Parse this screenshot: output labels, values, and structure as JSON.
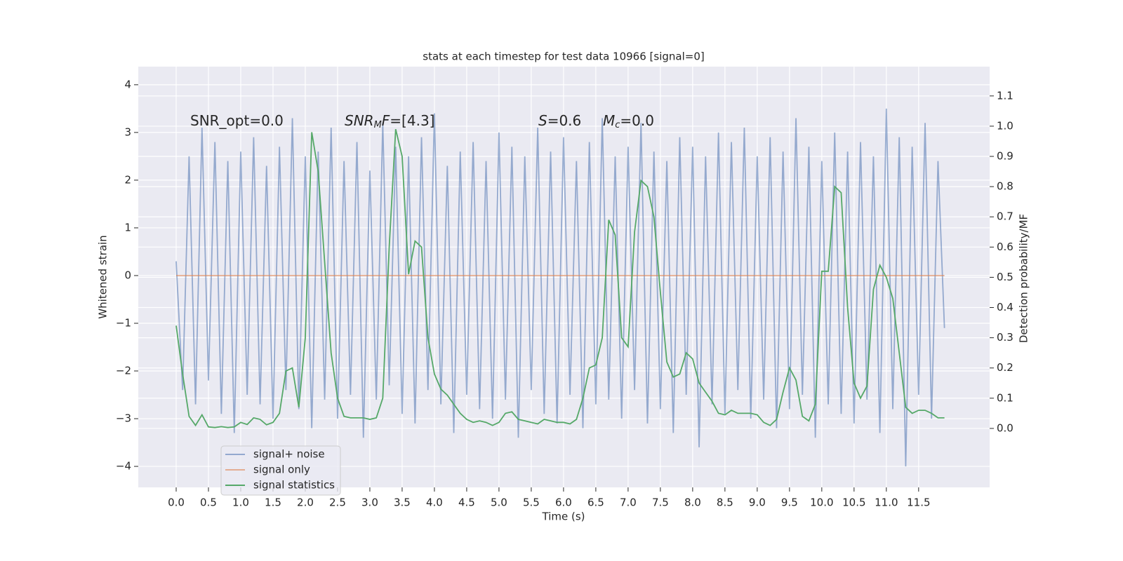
{
  "chart_data": {
    "type": "line",
    "title": "stats at each timestep for test data 10966 [signal=0]",
    "x_label": "Time (s)",
    "y_label": "Whitened strain",
    "y2_label": "Detection probability/MF",
    "annotations": [
      [
        {
          "text": "SNR_opt=0.0",
          "style": "normal"
        }
      ],
      [
        {
          "text": "SNR",
          "style": "italic"
        },
        {
          "text": "M",
          "style": "sub"
        },
        {
          "text": "F",
          "style": "italic"
        },
        {
          "text": "=[4.3]",
          "style": "normal"
        }
      ],
      [
        {
          "text": "S",
          "style": "italic"
        },
        {
          "text": "=0.6",
          "style": "normal"
        }
      ],
      [
        {
          "text": "M",
          "style": "italic"
        },
        {
          "text": "c",
          "style": "sub"
        },
        {
          "text": "=0.0",
          "style": "normal"
        }
      ]
    ],
    "x": [
      0.0,
      0.1,
      0.2,
      0.3,
      0.4,
      0.5,
      0.6,
      0.7,
      0.8,
      0.9,
      1.0,
      1.1,
      1.2,
      1.3,
      1.4,
      1.5,
      1.6,
      1.7,
      1.8,
      1.9,
      2.0,
      2.1,
      2.2,
      2.3,
      2.4,
      2.5,
      2.6,
      2.7,
      2.8,
      2.9,
      3.0,
      3.1,
      3.2,
      3.3,
      3.4,
      3.5,
      3.6,
      3.7,
      3.8,
      3.9,
      4.0,
      4.1,
      4.2,
      4.3,
      4.4,
      4.5,
      4.6,
      4.7,
      4.8,
      4.9,
      5.0,
      5.1,
      5.2,
      5.3,
      5.4,
      5.5,
      5.6,
      5.7,
      5.8,
      5.9,
      6.0,
      6.1,
      6.2,
      6.3,
      6.4,
      6.5,
      6.6,
      6.7,
      6.8,
      6.9,
      7.0,
      7.1,
      7.2,
      7.3,
      7.4,
      7.5,
      7.6,
      7.7,
      7.8,
      7.9,
      8.0,
      8.1,
      8.2,
      8.3,
      8.4,
      8.5,
      8.6,
      8.7,
      8.8,
      8.9,
      9.0,
      9.1,
      9.2,
      9.3,
      9.4,
      9.5,
      9.6,
      9.7,
      9.8,
      9.9,
      10.0,
      10.1,
      10.2,
      10.3,
      10.4,
      10.5,
      10.6,
      10.7,
      10.8,
      10.9,
      11.0,
      11.1,
      11.2,
      11.3,
      11.4,
      11.5,
      11.6,
      11.7,
      11.8,
      11.9
    ],
    "series": [
      {
        "name": "signal+ noise",
        "color": "#4c72b0",
        "alpha": 0.55,
        "axis": "y",
        "values": [
          0.3,
          -2.4,
          2.5,
          -2.7,
          3.1,
          -2.2,
          2.8,
          -2.9,
          2.4,
          -3.3,
          2.6,
          -2.5,
          2.9,
          -2.7,
          2.3,
          -3.0,
          2.7,
          -2.4,
          3.3,
          -2.8,
          2.5,
          -3.2,
          2.6,
          -2.6,
          3.1,
          -3.0,
          2.4,
          -2.5,
          2.8,
          -3.4,
          2.2,
          -2.6,
          3.2,
          -2.3,
          2.7,
          -2.9,
          2.5,
          -3.1,
          2.9,
          -2.4,
          3.4,
          -2.7,
          2.3,
          -3.3,
          2.6,
          -2.5,
          2.8,
          -2.8,
          2.4,
          -3.0,
          3.0,
          -2.6,
          2.7,
          -3.4,
          2.5,
          -2.4,
          3.1,
          -2.9,
          2.6,
          -3.1,
          2.9,
          -2.5,
          2.4,
          -3.2,
          2.8,
          -2.7,
          3.3,
          -2.6,
          2.5,
          -3.0,
          2.7,
          -2.4,
          3.2,
          -3.1,
          2.6,
          -2.8,
          2.4,
          -3.3,
          2.9,
          -2.5,
          2.7,
          -3.6,
          2.5,
          -2.7,
          3.0,
          -2.9,
          2.8,
          -2.4,
          3.1,
          -3.0,
          2.5,
          -2.6,
          2.9,
          -3.2,
          2.6,
          -2.8,
          3.3,
          -2.5,
          2.7,
          -3.4,
          2.4,
          -2.7,
          3.0,
          -2.9,
          2.6,
          -3.1,
          2.8,
          -2.6,
          2.5,
          -3.3,
          3.5,
          -2.8,
          2.9,
          -4.0,
          2.7,
          -2.5,
          3.2,
          -3.0,
          2.4,
          -1.1
        ]
      },
      {
        "name": "signal only",
        "color": "#dd8452",
        "alpha": 0.6,
        "axis": "y",
        "values": [
          0,
          0,
          0,
          0,
          0,
          0,
          0,
          0,
          0,
          0,
          0,
          0,
          0,
          0,
          0,
          0,
          0,
          0,
          0,
          0,
          0,
          0,
          0,
          0,
          0,
          0,
          0,
          0,
          0,
          0,
          0,
          0,
          0,
          0,
          0,
          0,
          0,
          0,
          0,
          0,
          0,
          0,
          0,
          0,
          0,
          0,
          0,
          0,
          0,
          0,
          0,
          0,
          0,
          0,
          0,
          0,
          0,
          0,
          0,
          0,
          0,
          0,
          0,
          0,
          0,
          0,
          0,
          0,
          0,
          0,
          0,
          0,
          0,
          0,
          0,
          0,
          0,
          0,
          0,
          0,
          0,
          0,
          0,
          0,
          0,
          0,
          0,
          0,
          0,
          0,
          0,
          0,
          0,
          0,
          0,
          0,
          0,
          0,
          0,
          0,
          0,
          0,
          0,
          0,
          0,
          0,
          0,
          0,
          0,
          0,
          0,
          0,
          0,
          0,
          0,
          0,
          0,
          0,
          0,
          0
        ]
      },
      {
        "name": "signal statistics",
        "color": "#55a868",
        "alpha": 1,
        "axis": "y2",
        "values": [
          0.34,
          0.18,
          0.04,
          0.01,
          0.045,
          0.005,
          0.003,
          0.006,
          0.003,
          0.005,
          0.02,
          0.013,
          0.035,
          0.03,
          0.012,
          0.02,
          0.05,
          0.19,
          0.2,
          0.07,
          0.3,
          0.98,
          0.85,
          0.55,
          0.25,
          0.1,
          0.04,
          0.035,
          0.035,
          0.035,
          0.03,
          0.035,
          0.1,
          0.6,
          0.99,
          0.9,
          0.51,
          0.62,
          0.6,
          0.3,
          0.18,
          0.13,
          0.11,
          0.08,
          0.05,
          0.03,
          0.02,
          0.025,
          0.02,
          0.01,
          0.02,
          0.05,
          0.055,
          0.03,
          0.025,
          0.02,
          0.015,
          0.03,
          0.025,
          0.02,
          0.02,
          0.015,
          0.03,
          0.1,
          0.2,
          0.21,
          0.3,
          0.69,
          0.64,
          0.3,
          0.27,
          0.65,
          0.82,
          0.8,
          0.7,
          0.45,
          0.22,
          0.17,
          0.18,
          0.25,
          0.23,
          0.15,
          0.12,
          0.09,
          0.05,
          0.045,
          0.06,
          0.05,
          0.05,
          0.05,
          0.045,
          0.02,
          0.01,
          0.03,
          0.12,
          0.2,
          0.16,
          0.04,
          0.025,
          0.08,
          0.52,
          0.52,
          0.8,
          0.78,
          0.4,
          0.15,
          0.1,
          0.14,
          0.46,
          0.54,
          0.5,
          0.43,
          0.25,
          0.07,
          0.05,
          0.06,
          0.06,
          0.05,
          0.035,
          0.035
        ]
      }
    ],
    "xlim": [
      -0.587,
      12.6
    ],
    "ylim": [
      -4.44,
      4.38
    ],
    "y2lim": [
      -0.195,
      1.197
    ],
    "xticks": [
      {
        "value": 0,
        "label": "0.0"
      },
      0.5,
      {
        "value": 1,
        "label": "1.0"
      },
      1.5,
      {
        "value": 2,
        "label": "2.0"
      },
      2.5,
      {
        "value": 3,
        "label": "3.0"
      },
      3.5,
      {
        "value": 4,
        "label": "4.0"
      },
      4.5,
      {
        "value": 5,
        "label": "5.0"
      },
      5.5,
      {
        "value": 6,
        "label": "6.0"
      },
      6.5,
      {
        "value": 7,
        "label": "7.0"
      },
      7.5,
      {
        "value": 8,
        "label": "8.0"
      },
      8.5,
      {
        "value": 9,
        "label": "9.0"
      },
      9.5,
      {
        "value": 10,
        "label": "10.0"
      },
      10.5,
      {
        "value": 11,
        "label": "11.0"
      },
      11.5
    ],
    "yticks": [
      {
        "value": -4,
        "label": "−4"
      },
      {
        "value": -3,
        "label": "−3"
      },
      {
        "value": -2,
        "label": "−2"
      },
      {
        "value": -1,
        "label": "−1"
      },
      0,
      1,
      2,
      3,
      4
    ],
    "y2ticks": [
      {
        "value": 0,
        "label": "0.0"
      },
      0.1,
      0.2,
      0.3,
      0.4,
      0.5,
      0.6,
      0.7,
      0.8,
      0.9,
      {
        "value": 1,
        "label": "1.0"
      },
      1.1
    ],
    "grid": true,
    "legend": "lower left"
  }
}
